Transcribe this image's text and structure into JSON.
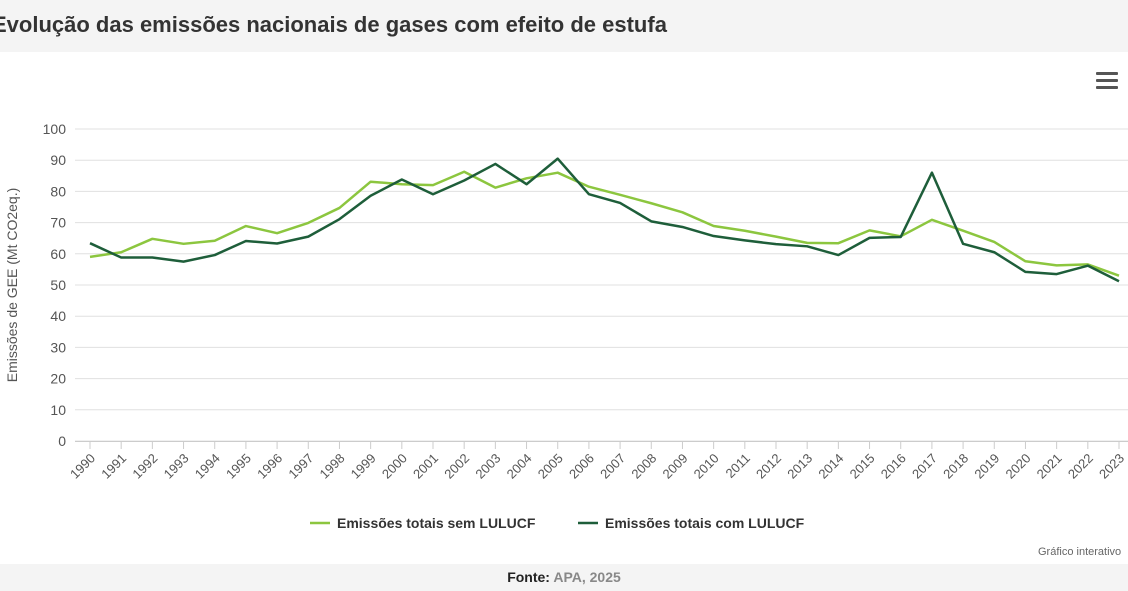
{
  "header": {
    "title": "Evolução das emissões nacionais de gases com efeito de estufa"
  },
  "menu_icon": "hamburger-menu-icon",
  "footer": {
    "label": "Fonte:",
    "source": "APA, 2025"
  },
  "credit": "Gráfico interativo",
  "chart_data": {
    "type": "line",
    "title": "",
    "xlabel": "",
    "ylabel": "Emissões de GEE (Mt CO2eq.)",
    "ylim": [
      0,
      100
    ],
    "yticks": [
      0,
      10,
      20,
      30,
      40,
      50,
      60,
      70,
      80,
      90,
      100
    ],
    "grid": true,
    "legend_placement": "bottom",
    "x": [
      "1990",
      "1991",
      "1992",
      "1993",
      "1994",
      "1995",
      "1996",
      "1997",
      "1998",
      "1999",
      "2000",
      "2001",
      "2002",
      "2003",
      "2004",
      "2005",
      "2006",
      "2007",
      "2008",
      "2009",
      "2010",
      "2011",
      "2012",
      "2013",
      "2014",
      "2015",
      "2016",
      "2017",
      "2018",
      "2019",
      "2020",
      "2021",
      "2022",
      "2023"
    ],
    "series": [
      {
        "name": "Emissões totais sem LULUCF",
        "color": "#8cc63f",
        "values": [
          59.0,
          60.5,
          64.8,
          63.2,
          64.2,
          68.9,
          66.6,
          69.9,
          74.7,
          83.1,
          82.3,
          82.0,
          86.3,
          81.2,
          84.2,
          86.0,
          81.5,
          78.9,
          76.2,
          73.3,
          68.9,
          67.4,
          65.5,
          63.5,
          63.4,
          67.5,
          65.6,
          70.9,
          67.4,
          63.8,
          57.6,
          56.3,
          56.6,
          53.0
        ]
      },
      {
        "name": "Emissões totais com LULUCF",
        "color": "#1e5e3a",
        "values": [
          63.4,
          58.8,
          58.8,
          57.5,
          59.6,
          64.1,
          63.3,
          65.5,
          71.1,
          78.6,
          83.8,
          79.1,
          83.5,
          88.8,
          82.3,
          90.5,
          79.1,
          76.3,
          70.4,
          68.6,
          65.7,
          64.3,
          63.1,
          62.4,
          59.6,
          65.1,
          65.4,
          86.0,
          63.2,
          60.5,
          54.2,
          53.5,
          56.2,
          51.2
        ]
      }
    ]
  }
}
